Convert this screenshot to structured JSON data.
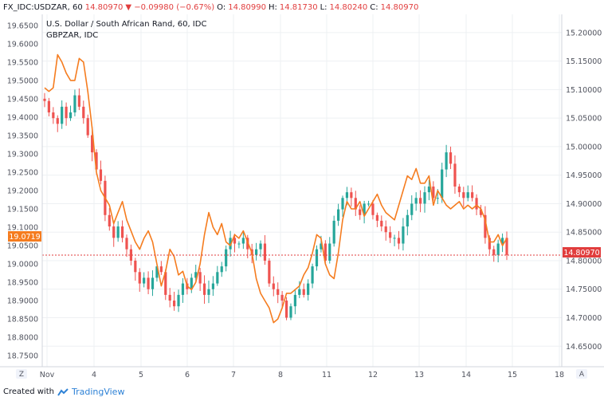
{
  "header": {
    "symbol": "FX_IDC:USDZAR, 60",
    "last": "14.80970",
    "change": "▼ −0.09980 (−0.67%)",
    "o_label": "O:",
    "o_value": "14.80990",
    "h_label": "H:",
    "h_value": "14.81730",
    "l_label": "L:",
    "l_value": "14.80240",
    "c_label": "C:",
    "c_value": "14.80970"
  },
  "colors": {
    "up": "#26a69a",
    "down": "#ef5350",
    "compare": "#f57c1f",
    "price_line": "#e13d3d",
    "grid": "#eef0f3",
    "axis_text": "#50535e"
  },
  "footer": {
    "created_with": "Created with",
    "brand": "TradingView"
  },
  "buttons": {
    "left": "Z",
    "right": "A"
  },
  "chart_data": {
    "type": "candlestick",
    "title": "U.S. Dollar / South African Rand, 60, IDC",
    "subtitle": "GBPZAR, IDC",
    "x_ticks": [
      "Nov",
      "4",
      "5",
      "6",
      "7",
      "8",
      "11",
      "12",
      "13",
      "14",
      "15",
      "18"
    ],
    "left_axis": {
      "series": "GBPZAR",
      "ticks": [
        "19.6500",
        "19.6000",
        "19.5500",
        "19.5000",
        "19.4500",
        "19.4000",
        "19.3500",
        "19.3000",
        "19.2500",
        "19.2000",
        "19.1500",
        "19.1000",
        "19.0500",
        "19.0000",
        "18.9500",
        "18.9000",
        "18.8500",
        "18.8000",
        "18.7500"
      ],
      "last_value": "19.0719",
      "ylim": [
        18.72,
        19.68
      ]
    },
    "right_axis": {
      "series": "USDZAR",
      "ticks": [
        "15.20000",
        "15.15000",
        "15.10000",
        "15.05000",
        "15.00000",
        "14.95000",
        "14.90000",
        "14.85000",
        "14.80000",
        "14.75000",
        "14.70000",
        "14.65000"
      ],
      "last_value": "14.80970",
      "ylim": [
        14.614,
        15.232
      ]
    },
    "usdzar_close": [
      15.08,
      15.06,
      15.05,
      15.04,
      15.07,
      15.05,
      15.06,
      15.09,
      15.07,
      15.05,
      15.02,
      14.99,
      14.96,
      14.94,
      14.88,
      14.86,
      14.84,
      14.86,
      14.84,
      14.82,
      14.8,
      14.78,
      14.76,
      14.77,
      14.75,
      14.77,
      14.79,
      14.78,
      14.74,
      14.73,
      14.72,
      14.74,
      14.76,
      14.75,
      14.77,
      14.78,
      14.76,
      14.74,
      14.75,
      14.76,
      14.78,
      14.79,
      14.82,
      14.84,
      14.83,
      14.83,
      14.84,
      14.82,
      14.81,
      14.82,
      14.83,
      14.8,
      14.76,
      14.75,
      14.74,
      14.73,
      14.7,
      14.72,
      14.74,
      14.75,
      14.74,
      14.76,
      14.79,
      14.82,
      14.83,
      14.8,
      14.83,
      14.87,
      14.89,
      14.91,
      14.92,
      14.91,
      14.89,
      14.88,
      14.9,
      14.9,
      14.88,
      14.87,
      14.86,
      14.85,
      14.84,
      14.84,
      14.83,
      14.86,
      14.88,
      14.9,
      14.91,
      14.9,
      14.92,
      14.93,
      14.91,
      14.91,
      14.96,
      14.99,
      14.97,
      14.93,
      14.92,
      14.91,
      14.92,
      14.91,
      14.89,
      14.88,
      14.84,
      14.82,
      14.81,
      14.83,
      14.84,
      14.81
    ],
    "gbpzar_close": [
      19.48,
      19.47,
      19.48,
      19.57,
      19.55,
      19.52,
      19.5,
      19.5,
      19.56,
      19.55,
      19.47,
      19.37,
      19.25,
      19.2,
      19.18,
      19.16,
      19.11,
      19.14,
      19.17,
      19.12,
      19.09,
      19.06,
      19.04,
      19.07,
      19.09,
      19.06,
      19.0,
      18.94,
      18.98,
      19.04,
      19.02,
      18.97,
      18.98,
      18.94,
      18.93,
      18.95,
      19.0,
      19.08,
      19.14,
      19.1,
      19.08,
      19.11,
      19.06,
      19.05,
      19.08,
      19.07,
      19.09,
      19.06,
      19.03,
      18.96,
      18.92,
      18.9,
      18.88,
      18.84,
      18.85,
      18.88,
      18.92,
      18.92,
      18.93,
      18.94,
      18.97,
      18.99,
      19.03,
      19.08,
      19.07,
      19.0,
      18.97,
      18.96,
      19.03,
      19.12,
      19.17,
      19.15,
      19.15,
      19.17,
      19.13,
      19.15,
      19.17,
      19.19,
      19.16,
      19.14,
      19.13,
      19.12,
      19.16,
      19.2,
      19.24,
      19.23,
      19.26,
      19.22,
      19.22,
      19.24,
      19.16,
      19.2,
      19.18,
      19.16,
      19.15,
      19.16,
      19.17,
      19.15,
      19.16,
      19.15,
      19.16,
      19.15,
      19.12,
      19.06,
      19.06,
      19.08,
      19.05,
      19.07
    ]
  }
}
